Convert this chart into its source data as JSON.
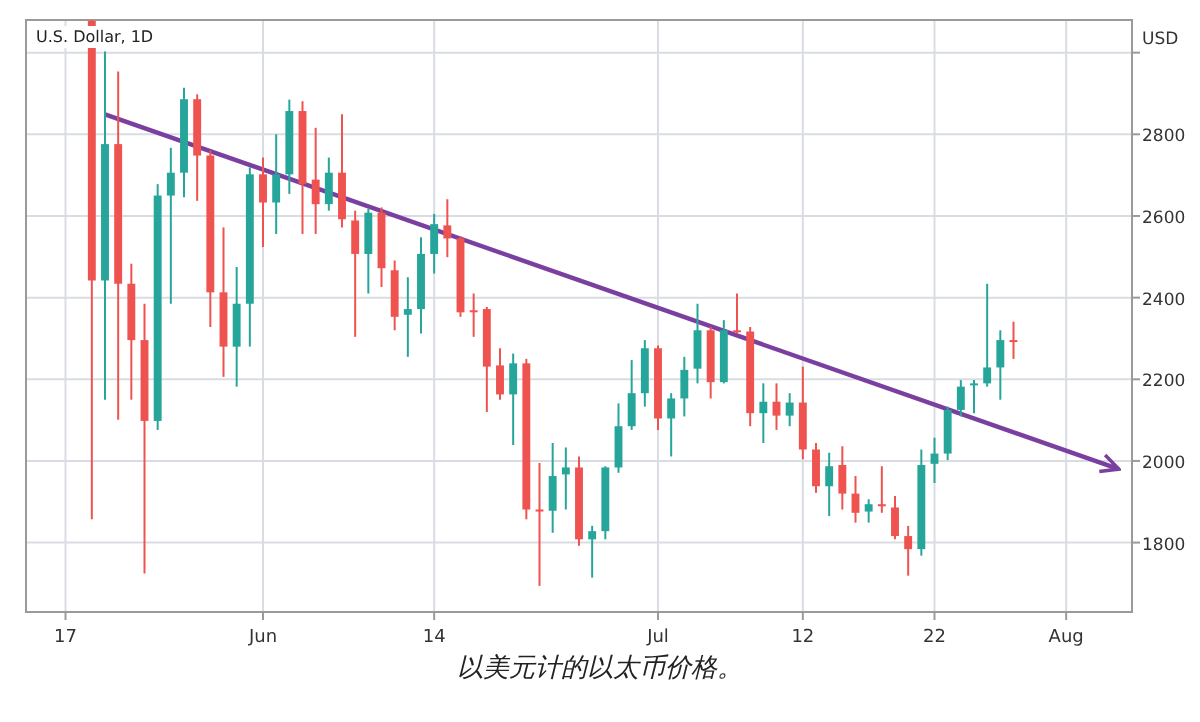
{
  "chart_data": {
    "type": "candlestick",
    "title": "U.S. Dollar, 1D",
    "ylabel": "USD",
    "annotations": [
      "以美元计的以太币价格。"
    ],
    "x": [
      "--05-19",
      "--05-20",
      "--05-21",
      "--05-22",
      "--05-23",
      "--05-24",
      "--05-25",
      "--05-26",
      "--05-27",
      "--05-28",
      "--05-29",
      "--05-30",
      "--05-31",
      "--06-01",
      "--06-02",
      "--06-03",
      "--06-04",
      "--06-05",
      "--06-06",
      "--06-07",
      "--06-08",
      "--06-09",
      "--06-10",
      "--06-11",
      "--06-12",
      "--06-13",
      "--06-14",
      "--06-15",
      "--06-16",
      "--06-17",
      "--06-18",
      "--06-19",
      "--06-20",
      "--06-21",
      "--06-22",
      "--06-23",
      "--06-24",
      "--06-25",
      "--06-26",
      "--06-27",
      "--06-28",
      "--06-29",
      "--06-30",
      "--07-01",
      "--07-02",
      "--07-03",
      "--07-04",
      "--07-05",
      "--07-06",
      "--07-07",
      "--07-08",
      "--07-09",
      "--07-10",
      "--07-11",
      "--07-12",
      "--07-13",
      "--07-14",
      "--07-15",
      "--07-16",
      "--07-17",
      "--07-18",
      "--07-19",
      "--07-20",
      "--07-21",
      "--07-22",
      "--07-23",
      "--07-24",
      "--07-25",
      "--07-26",
      "--07-27",
      "--07-28"
    ],
    "ohlc": [
      [
        3078,
        3080,
        1857,
        2442
      ],
      [
        2442,
        3003,
        2150,
        2776
      ],
      [
        2776,
        2954,
        2101,
        2434
      ],
      [
        2434,
        2483,
        2150,
        2296
      ],
      [
        2296,
        2385,
        1724,
        2098
      ],
      [
        2098,
        2678,
        2076,
        2650
      ],
      [
        2650,
        2767,
        2385,
        2706
      ],
      [
        2706,
        2914,
        2646,
        2886
      ],
      [
        2886,
        2898,
        2637,
        2748
      ],
      [
        2748,
        2760,
        2328,
        2413
      ],
      [
        2413,
        2572,
        2206,
        2280
      ],
      [
        2280,
        2475,
        2182,
        2385
      ],
      [
        2385,
        2719,
        2280,
        2702
      ],
      [
        2702,
        2743,
        2524,
        2633
      ],
      [
        2633,
        2800,
        2556,
        2702
      ],
      [
        2702,
        2885,
        2654,
        2857
      ],
      [
        2857,
        2881,
        2556,
        2678
      ],
      [
        2689,
        2816,
        2556,
        2629
      ],
      [
        2629,
        2743,
        2613,
        2706
      ],
      [
        2706,
        2849,
        2572,
        2592
      ],
      [
        2589,
        2613,
        2304,
        2507
      ],
      [
        2507,
        2618,
        2410,
        2608
      ],
      [
        2608,
        2621,
        2426,
        2472
      ],
      [
        2467,
        2491,
        2320,
        2353
      ],
      [
        2358,
        2450,
        2255,
        2372
      ],
      [
        2372,
        2548,
        2312,
        2507
      ],
      [
        2507,
        2605,
        2459,
        2580
      ],
      [
        2577,
        2641,
        2499,
        2545
      ],
      [
        2545,
        2550,
        2353,
        2364
      ],
      [
        2369,
        2410,
        2304,
        2366
      ],
      [
        2372,
        2377,
        2120,
        2231
      ],
      [
        2234,
        2276,
        2150,
        2163
      ],
      [
        2163,
        2263,
        2039,
        2239
      ],
      [
        2239,
        2250,
        1857,
        1881
      ],
      [
        1881,
        1995,
        1694,
        1880
      ],
      [
        1878,
        2044,
        1824,
        1963
      ],
      [
        1967,
        2033,
        1881,
        1984
      ],
      [
        1984,
        2011,
        1792,
        1808
      ],
      [
        1808,
        1841,
        1714,
        1828
      ],
      [
        1828,
        1987,
        1808,
        1984
      ],
      [
        1984,
        2141,
        1971,
        2085
      ],
      [
        2085,
        2247,
        2076,
        2166
      ],
      [
        2166,
        2296,
        2133,
        2276
      ],
      [
        2276,
        2283,
        2076,
        2104
      ],
      [
        2104,
        2166,
        2011,
        2153
      ],
      [
        2153,
        2255,
        2109,
        2223
      ],
      [
        2226,
        2385,
        2190,
        2320
      ],
      [
        2320,
        2328,
        2153,
        2193
      ],
      [
        2193,
        2345,
        2190,
        2320
      ],
      [
        2320,
        2410,
        2312,
        2317
      ],
      [
        2317,
        2328,
        2085,
        2117
      ],
      [
        2117,
        2190,
        2044,
        2145
      ],
      [
        2145,
        2190,
        2076,
        2111
      ],
      [
        2111,
        2166,
        2085,
        2143
      ],
      [
        2143,
        2231,
        2004,
        2028
      ],
      [
        2028,
        2044,
        1922,
        1938
      ],
      [
        1938,
        2020,
        1865,
        1987
      ],
      [
        1990,
        2036,
        1881,
        1920
      ],
      [
        1920,
        1963,
        1849,
        1873
      ],
      [
        1876,
        1906,
        1849,
        1894
      ],
      [
        1894,
        1987,
        1873,
        1889
      ],
      [
        1886,
        1914,
        1808,
        1816
      ],
      [
        1816,
        1841,
        1719,
        1784
      ],
      [
        1784,
        2028,
        1768,
        1990
      ],
      [
        1993,
        2057,
        1946,
        2018
      ],
      [
        2018,
        2133,
        2002,
        2125
      ],
      [
        2125,
        2198,
        2109,
        2182
      ],
      [
        2187,
        2198,
        2117,
        2190
      ],
      [
        2190,
        2434,
        2182,
        2229
      ],
      [
        2229,
        2320,
        2150,
        2296
      ],
      [
        2296,
        2341,
        2250,
        2293
      ]
    ],
    "colors": [
      "#ef5350",
      "#26a69a",
      "#ef5350",
      "#ef5350",
      "#ef5350",
      "#26a69a",
      "#26a69a",
      "#26a69a",
      "#ef5350",
      "#ef5350",
      "#ef5350",
      "#26a69a",
      "#26a69a",
      "#ef5350",
      "#26a69a",
      "#26a69a",
      "#ef5350",
      "#ef5350",
      "#26a69a",
      "#ef5350",
      "#ef5350",
      "#26a69a",
      "#ef5350",
      "#ef5350",
      "#26a69a",
      "#26a69a",
      "#26a69a",
      "#ef5350",
      "#ef5350",
      "#ef5350",
      "#ef5350",
      "#ef5350",
      "#26a69a",
      "#ef5350",
      "#ef5350",
      "#26a69a",
      "#26a69a",
      "#ef5350",
      "#26a69a",
      "#26a69a",
      "#26a69a",
      "#26a69a",
      "#26a69a",
      "#ef5350",
      "#26a69a",
      "#26a69a",
      "#26a69a",
      "#ef5350",
      "#26a69a",
      "#ef5350",
      "#ef5350",
      "#26a69a",
      "#ef5350",
      "#26a69a",
      "#ef5350",
      "#ef5350",
      "#26a69a",
      "#ef5350",
      "#ef5350",
      "#26a69a",
      "#ef5350",
      "#ef5350",
      "#ef5350",
      "#26a69a",
      "#26a69a",
      "#26a69a",
      "#26a69a",
      "#26a69a",
      "#26a69a",
      "#26a69a",
      "#ef5350"
    ],
    "series": [
      {
        "type": "line",
        "x": [
          "--05-20",
          "--08-05"
        ],
        "values": [
          2849,
          1980
        ],
        "color": "#7b3fa0"
      }
    ],
    "xlim": [
      "--05-14",
      "--08-06"
    ],
    "xticks": [
      {
        "value": "--05-17",
        "label": "17"
      },
      {
        "value": "--06-01",
        "label": "Jun"
      },
      {
        "value": "--06-14",
        "label": "14"
      },
      {
        "value": "--07-01",
        "label": "Jul"
      },
      {
        "value": "--07-12",
        "label": "12"
      },
      {
        "value": "--07-22",
        "label": "22"
      },
      {
        "value": "--08-01",
        "label": "Aug"
      }
    ],
    "ylim": [
      1630,
      3080
    ],
    "yticks": [
      1800,
      2000,
      2200,
      2400,
      2600,
      2800,
      {
        "value": 3000,
        "label": null
      }
    ],
    "grid": true
  }
}
